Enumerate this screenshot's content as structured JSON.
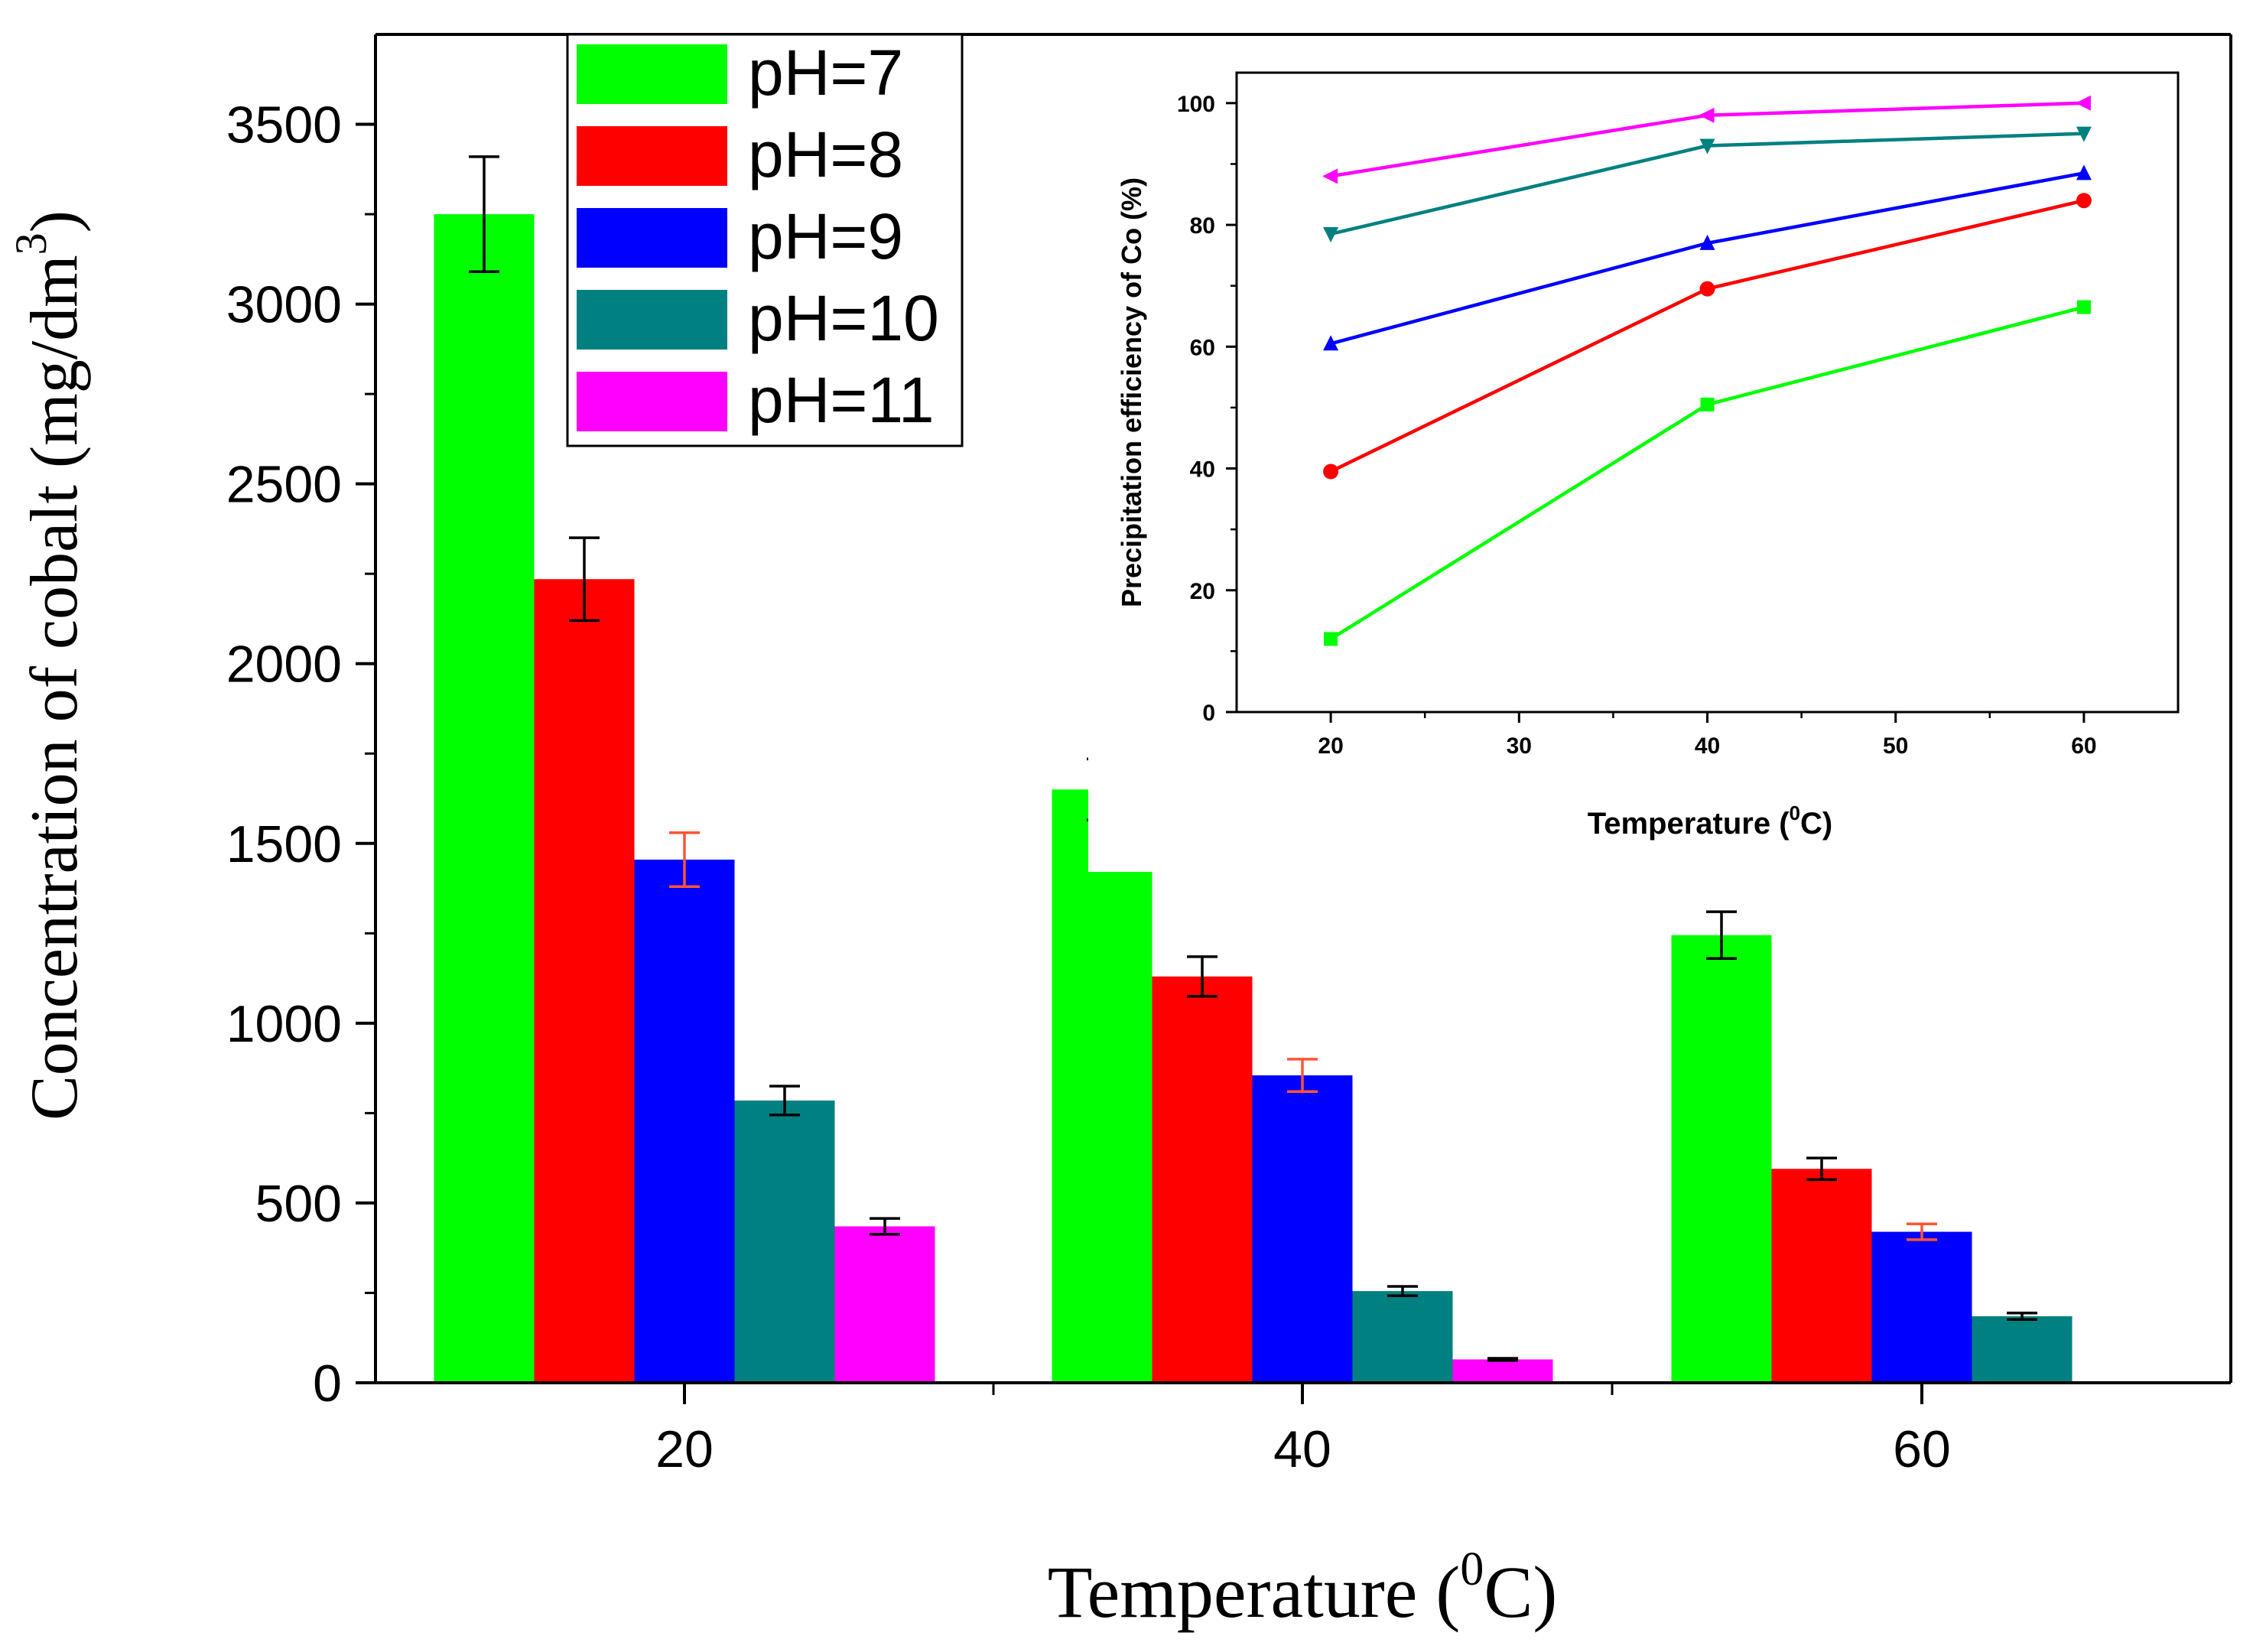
{
  "chart_data": [
    {
      "type": "bar",
      "xlabel_text": "Temperature (",
      "xlabel_sup": "0",
      "xlabel_unit": "C)",
      "ylabel_text": "Concentration of cobalt (mg/dm",
      "ylabel_sup": "3",
      "ylabel_close": ")",
      "categories": [
        "20",
        "40",
        "60"
      ],
      "ylim": [
        0,
        3750
      ],
      "yticks": [
        "0",
        "500",
        "1000",
        "1500",
        "2000",
        "2500",
        "3000",
        "3500"
      ],
      "ytick_values": [
        0,
        500,
        1000,
        1500,
        2000,
        2500,
        3000,
        3500
      ],
      "grid": false,
      "legend_position": "top-left",
      "series": [
        {
          "name": "pH=7",
          "color": "#00ff00",
          "values": [
            3250,
            1650,
            1245
          ],
          "errors": [
            160,
            85,
            65
          ],
          "error_colors": [
            "#000000",
            "#000000",
            "#000000"
          ]
        },
        {
          "name": "pH=8",
          "color": "#ff0000",
          "values": [
            2235,
            1130,
            595
          ],
          "errors": [
            115,
            55,
            30
          ],
          "error_colors": [
            "#000000",
            "#000000",
            "#000000"
          ]
        },
        {
          "name": "pH=9",
          "color": "#0000ff",
          "values": [
            1455,
            855,
            420
          ],
          "errors": [
            75,
            45,
            22
          ],
          "error_colors": [
            "#ff5533",
            "#ff5533",
            "#ff5533"
          ]
        },
        {
          "name": "pH=10",
          "color": "#008080",
          "values": [
            785,
            255,
            185
          ],
          "errors": [
            40,
            13,
            9
          ],
          "error_colors": [
            "#000000",
            "#000000",
            "#000000"
          ]
        },
        {
          "name": "pH=11",
          "color": "#ff00ff",
          "values": [
            435,
            65,
            null
          ],
          "errors": [
            22,
            3,
            null
          ],
          "error_colors": [
            "#000000",
            "#000000",
            "#000000"
          ]
        }
      ]
    },
    {
      "type": "line",
      "xlabel_text": "Temperature (",
      "xlabel_sup": "0",
      "xlabel_unit": "C)",
      "ylabel": "Precipitation efficiency of Co (%)",
      "xlim": [
        15,
        65
      ],
      "ylim": [
        0,
        105
      ],
      "xticks": [
        "20",
        "30",
        "40",
        "50",
        "60"
      ],
      "xtick_values": [
        20,
        30,
        40,
        50,
        60
      ],
      "yticks": [
        "0",
        "20",
        "40",
        "60",
        "80",
        "100"
      ],
      "ytick_values": [
        0,
        20,
        40,
        60,
        80,
        100
      ],
      "x": [
        20,
        40,
        60
      ],
      "series": [
        {
          "color": "#00ff00",
          "marker": "square",
          "values": [
            12,
            50.5,
            66.5
          ]
        },
        {
          "color": "#ff0000",
          "marker": "circle",
          "values": [
            39.5,
            69.5,
            84
          ]
        },
        {
          "color": "#0000ff",
          "marker": "triangle-up",
          "values": [
            60.5,
            77,
            88.5
          ]
        },
        {
          "color": "#008080",
          "marker": "triangle-down",
          "values": [
            78.5,
            93,
            95
          ]
        },
        {
          "color": "#ff00ff",
          "marker": "triangle-left",
          "values": [
            88,
            98,
            100
          ]
        }
      ]
    }
  ]
}
